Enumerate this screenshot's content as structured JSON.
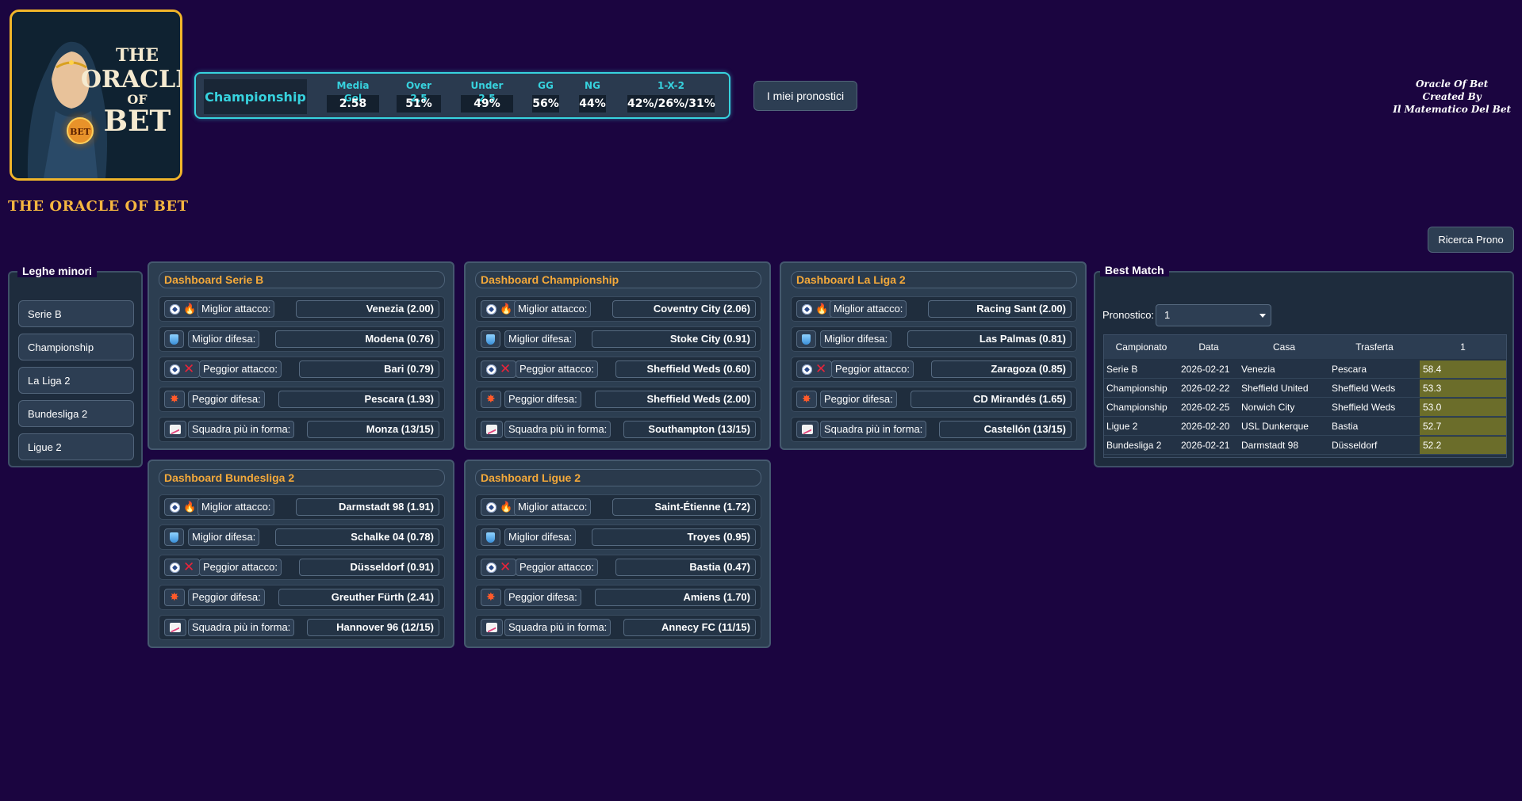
{
  "app": {
    "title": "THE ORACLE OF BET",
    "logo": {
      "line1": "THE",
      "line2": "ORACLE",
      "line3": "OF",
      "line4": "BET",
      "ball_label": "BET"
    },
    "credits": [
      "Oracle Of Bet",
      "Created By",
      "Il Matematico Del Bet"
    ]
  },
  "stats": {
    "league": "Championship",
    "items": [
      {
        "label": "Media Gol",
        "value": "2.58"
      },
      {
        "label": "Over 2,5",
        "value": "51%"
      },
      {
        "label": "Under 2,5",
        "value": "49%"
      },
      {
        "label": "GG",
        "value": "56%"
      },
      {
        "label": "NG",
        "value": "44%"
      },
      {
        "label": "1-X-2",
        "value": "42%/26%/31%"
      }
    ]
  },
  "buttons": {
    "my_predictions": "I miei pronostici",
    "search": "Ricerca Prono"
  },
  "sidebar": {
    "title": "Leghe minori",
    "items": [
      "Serie B",
      "Championship",
      "La Liga 2",
      "Bundesliga 2",
      "Ligue 2"
    ]
  },
  "row_labels": {
    "attack_best": "Miglior attacco:",
    "defense_best": "Miglior difesa:",
    "attack_worst": "Peggior attacco:",
    "defense_worst": "Peggior difesa:",
    "form": "Squadra più in forma:"
  },
  "dashboards": [
    {
      "title": "Dashboard Serie B",
      "values": [
        "Venezia (2.00)",
        "Modena (0.76)",
        "Bari (0.79)",
        "Pescara (1.93)",
        "Monza (13/15)"
      ]
    },
    {
      "title": "Dashboard Championship",
      "values": [
        "Coventry City (2.06)",
        "Stoke City (0.91)",
        "Sheffield Weds (0.60)",
        "Sheffield Weds (2.00)",
        "Southampton (13/15)"
      ]
    },
    {
      "title": "Dashboard La Liga 2",
      "values": [
        "Racing Sant (2.00)",
        "Las Palmas (0.81)",
        "Zaragoza (0.85)",
        "CD Mirandés (1.65)",
        "Castellón (13/15)"
      ]
    },
    {
      "title": "Dashboard Bundesliga 2",
      "values": [
        "Darmstadt 98 (1.91)",
        "Schalke 04 (0.78)",
        "Düsseldorf (0.91)",
        "Greuther Fürth (2.41)",
        "Hannover 96 (12/15)"
      ]
    },
    {
      "title": "Dashboard Ligue 2",
      "values": [
        "Saint-Étienne (1.72)",
        "Troyes (0.95)",
        "Bastia (0.47)",
        "Amiens (1.70)",
        "Annecy FC (11/15)"
      ]
    }
  ],
  "best_match": {
    "title": "Best Match",
    "select_label": "Pronostico:",
    "select_value": "1",
    "columns": [
      "Campionato",
      "Data",
      "Casa",
      "Trasferta",
      "1"
    ],
    "rows": [
      [
        "Serie B",
        "2026-02-21",
        "Venezia",
        "Pescara",
        "58.4"
      ],
      [
        "Championship",
        "2026-02-22",
        "Sheffield United",
        "Sheffield Weds",
        "53.3"
      ],
      [
        "Championship",
        "2026-02-25",
        "Norwich City",
        "Sheffield Weds",
        "53.0"
      ],
      [
        "Ligue 2",
        "2026-02-20",
        "USL Dunkerque",
        "Bastia",
        "52.7"
      ],
      [
        "Bundesliga 2",
        "2026-02-21",
        "Darmstadt 98",
        "Düsseldorf",
        "52.2"
      ]
    ]
  },
  "colors": {
    "background": "#1b0540",
    "accent": "#37d2de",
    "title": "#f4a93a",
    "highlight": "#6b6d2a"
  }
}
